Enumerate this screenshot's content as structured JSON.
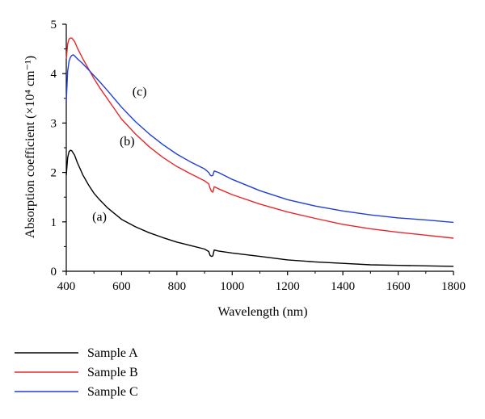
{
  "chart_data": {
    "type": "line",
    "xlabel": "Wavelength (nm)",
    "ylabel": "Absorption coefficient (×10⁴ cm⁻¹)",
    "xlim": [
      400,
      1800
    ],
    "ylim": [
      0,
      5
    ],
    "xticks": [
      400,
      600,
      800,
      1000,
      1200,
      1400,
      1600,
      1800
    ],
    "yticks": [
      0,
      1,
      2,
      3,
      4,
      5
    ],
    "legend_position": "bottom-left, below plot",
    "grid": false,
    "series": [
      {
        "name": "Sample A",
        "color": "#000000",
        "x": [
          400,
          405,
          410,
          415,
          420,
          430,
          440,
          460,
          480,
          500,
          520,
          550,
          600,
          650,
          700,
          750,
          800,
          850,
          900,
          915,
          920,
          925,
          930,
          935,
          950,
          1000,
          1100,
          1200,
          1300,
          1400,
          1500,
          1600,
          1700,
          1800
        ],
        "y": [
          1.95,
          2.3,
          2.42,
          2.45,
          2.44,
          2.35,
          2.2,
          1.95,
          1.75,
          1.58,
          1.45,
          1.28,
          1.05,
          0.9,
          0.78,
          0.68,
          0.59,
          0.52,
          0.45,
          0.4,
          0.32,
          0.3,
          0.31,
          0.43,
          0.41,
          0.37,
          0.3,
          0.23,
          0.19,
          0.16,
          0.13,
          0.12,
          0.11,
          0.1
        ]
      },
      {
        "name": "Sample B",
        "color": "#e8262a",
        "x": [
          400,
          405,
          410,
          415,
          420,
          430,
          440,
          460,
          480,
          500,
          520,
          550,
          600,
          650,
          700,
          750,
          800,
          850,
          900,
          915,
          920,
          925,
          930,
          935,
          950,
          1000,
          1100,
          1200,
          1300,
          1400,
          1500,
          1600,
          1700,
          1800
        ],
        "y": [
          4.3,
          4.6,
          4.7,
          4.72,
          4.72,
          4.65,
          4.52,
          4.3,
          4.1,
          3.9,
          3.72,
          3.48,
          3.08,
          2.78,
          2.52,
          2.3,
          2.12,
          1.97,
          1.83,
          1.77,
          1.68,
          1.62,
          1.6,
          1.71,
          1.67,
          1.55,
          1.36,
          1.2,
          1.07,
          0.95,
          0.86,
          0.79,
          0.73,
          0.67
        ]
      },
      {
        "name": "Sample C",
        "color": "#1f3fd6",
        "x": [
          400,
          405,
          410,
          415,
          420,
          425,
          430,
          435,
          440,
          450,
          460,
          480,
          500,
          520,
          550,
          600,
          650,
          700,
          750,
          800,
          850,
          900,
          915,
          920,
          925,
          930,
          935,
          950,
          1000,
          1100,
          1200,
          1300,
          1400,
          1500,
          1600,
          1700,
          1800
        ],
        "y": [
          3.45,
          4.05,
          4.25,
          4.33,
          4.37,
          4.38,
          4.36,
          4.33,
          4.3,
          4.25,
          4.2,
          4.08,
          3.96,
          3.84,
          3.65,
          3.32,
          3.03,
          2.78,
          2.56,
          2.37,
          2.21,
          2.07,
          2.0,
          1.95,
          1.93,
          1.94,
          2.03,
          2.0,
          1.86,
          1.63,
          1.45,
          1.32,
          1.22,
          1.14,
          1.08,
          1.04,
          0.99
        ]
      }
    ],
    "annotations": [
      {
        "text": "(a)",
        "x": 520,
        "y": 1.02
      },
      {
        "text": "(b)",
        "x": 620,
        "y": 2.55
      },
      {
        "text": "(c)",
        "x": 665,
        "y": 3.55
      }
    ]
  }
}
